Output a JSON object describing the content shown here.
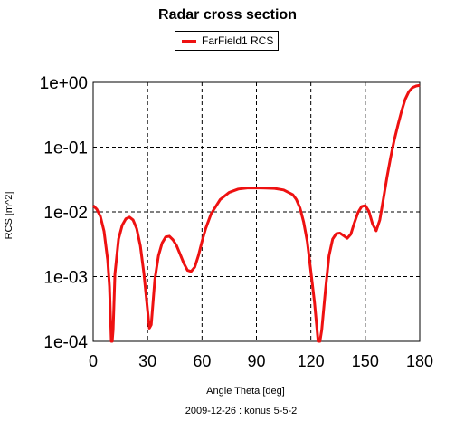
{
  "chart_data": {
    "type": "line",
    "title": "Radar cross section",
    "xlabel": "Angle Theta [deg]",
    "ylabel": "RCS [m^2]",
    "footer": "2009-12-26 : konus 5-5-2",
    "xlim": [
      0,
      180
    ],
    "ylim": [
      0.0001,
      1
    ],
    "yscale": "log",
    "grid": true,
    "legend_position": "top-center",
    "x_ticks": [
      "0",
      "30",
      "60",
      "90",
      "120",
      "150",
      "180"
    ],
    "y_ticks": [
      "1e+00",
      "1e-01",
      "1e-02",
      "1e-03",
      "1e-04"
    ],
    "series": [
      {
        "name": "FarField1 RCS",
        "color": "#ee1111",
        "x": [
          0,
          2,
          4,
          6,
          8,
          9,
          10,
          10.5,
          11,
          12,
          14,
          16,
          18,
          20,
          22,
          24,
          26,
          28,
          30,
          31,
          32,
          33,
          34,
          36,
          38,
          40,
          42,
          44,
          46,
          48,
          50,
          52,
          54,
          56,
          58,
          60,
          62,
          65,
          70,
          75,
          80,
          85,
          90,
          95,
          100,
          105,
          110,
          112,
          114,
          116,
          118,
          120,
          122,
          124,
          125,
          126,
          128,
          130,
          132,
          134,
          136,
          138,
          140,
          142,
          144,
          146,
          148,
          150,
          152,
          154,
          156,
          158,
          160,
          162,
          164,
          166,
          168,
          170,
          172,
          174,
          176,
          178,
          180
        ],
        "y": [
          0.0125,
          0.011,
          0.0085,
          0.005,
          0.0018,
          0.0007,
          0.0001,
          0.0001,
          0.00015,
          0.0011,
          0.0038,
          0.0062,
          0.0078,
          0.0083,
          0.0075,
          0.0055,
          0.003,
          0.0011,
          0.0003,
          0.00016,
          0.00018,
          0.0004,
          0.0009,
          0.0021,
          0.0033,
          0.0041,
          0.0042,
          0.0037,
          0.003,
          0.0022,
          0.0016,
          0.00125,
          0.0012,
          0.0014,
          0.0021,
          0.0035,
          0.0055,
          0.0093,
          0.0155,
          0.02,
          0.0225,
          0.0234,
          0.0235,
          0.0233,
          0.023,
          0.0218,
          0.0185,
          0.0155,
          0.0115,
          0.007,
          0.0035,
          0.0012,
          0.0004,
          0.0001,
          0.0001,
          0.00015,
          0.0006,
          0.0021,
          0.0038,
          0.0046,
          0.0047,
          0.0043,
          0.0039,
          0.0045,
          0.0068,
          0.0098,
          0.0121,
          0.0125,
          0.0102,
          0.0065,
          0.0051,
          0.0075,
          0.016,
          0.035,
          0.07,
          0.13,
          0.22,
          0.36,
          0.55,
          0.72,
          0.83,
          0.88,
          0.9
        ]
      }
    ]
  }
}
